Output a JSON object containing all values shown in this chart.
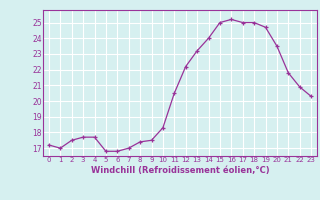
{
  "x": [
    0,
    1,
    2,
    3,
    4,
    5,
    6,
    7,
    8,
    9,
    10,
    11,
    12,
    13,
    14,
    15,
    16,
    17,
    18,
    19,
    20,
    21,
    22,
    23
  ],
  "y": [
    17.2,
    17.0,
    17.5,
    17.7,
    17.7,
    16.8,
    16.8,
    17.0,
    17.4,
    17.5,
    18.3,
    20.5,
    22.2,
    23.2,
    24.0,
    25.0,
    25.2,
    25.0,
    25.0,
    24.7,
    23.5,
    21.8,
    20.9,
    20.3
  ],
  "xlabel": "Windchill (Refroidissement éolien,°C)",
  "ylim": [
    16.5,
    25.8
  ],
  "xlim": [
    -0.5,
    23.5
  ],
  "yticks": [
    17,
    18,
    19,
    20,
    21,
    22,
    23,
    24,
    25
  ],
  "xtick_labels": [
    "0",
    "1",
    "2",
    "3",
    "4",
    "5",
    "6",
    "7",
    "8",
    "9",
    "10",
    "11",
    "12",
    "13",
    "14",
    "15",
    "16",
    "17",
    "18",
    "19",
    "20",
    "21",
    "22",
    "23"
  ],
  "line_color": "#993399",
  "marker_color": "#993399",
  "bg_color": "#d6f0f0",
  "grid_color": "#ffffff",
  "xlabel_color": "#993399",
  "tick_color": "#993399",
  "spine_color": "#993399"
}
